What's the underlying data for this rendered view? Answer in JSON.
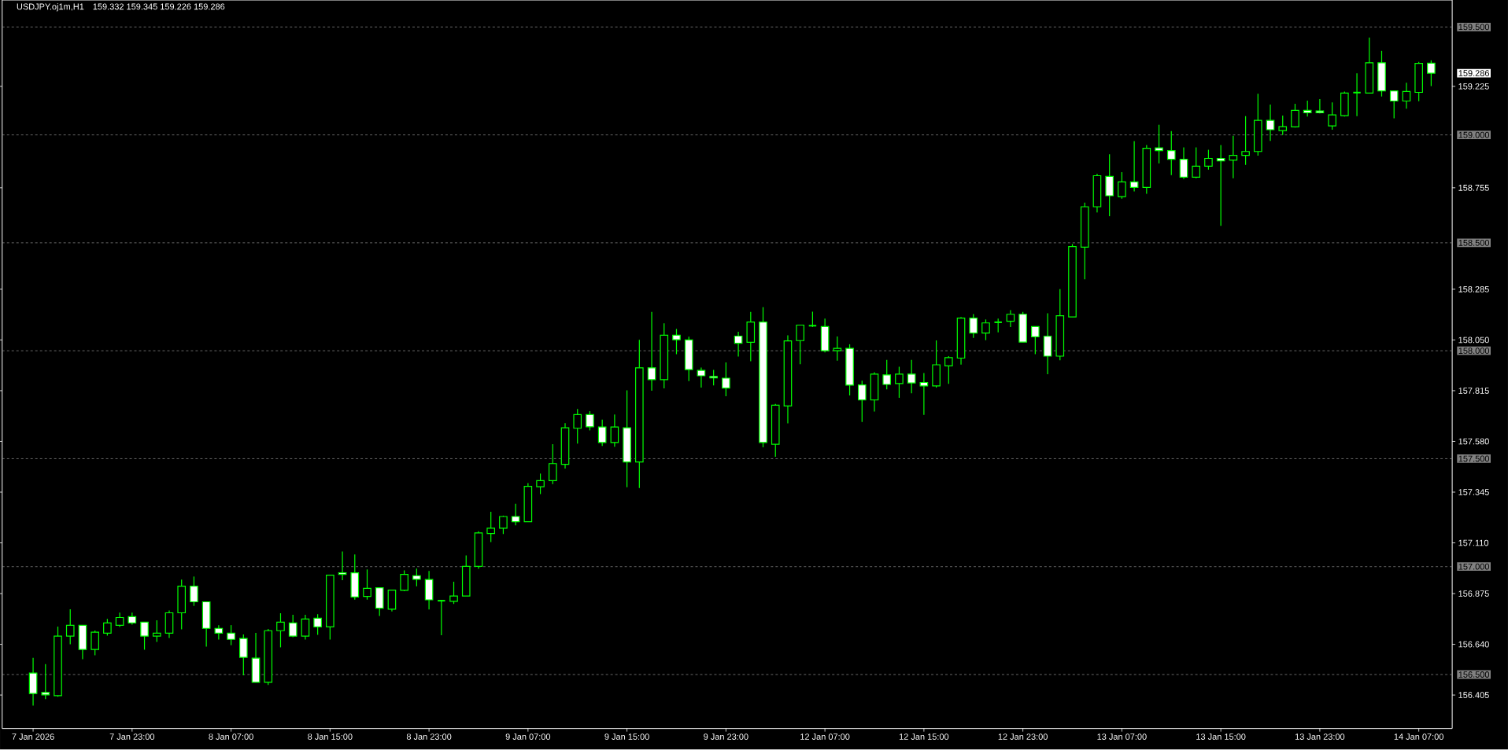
{
  "chart_data": {
    "type": "candlestick",
    "title": "USDJPY.oj1m,H1",
    "subtitle": "159.332 159.345 159.226 159.286",
    "categories": [
      "7 Jan 2026",
      null,
      null,
      null,
      null,
      null,
      null,
      null,
      "7 Jan 23:00",
      null,
      null,
      null,
      null,
      null,
      null,
      null,
      "8 Jan 07:00",
      null,
      null,
      null,
      null,
      null,
      null,
      null,
      "8 Jan 15:00",
      null,
      null,
      null,
      null,
      null,
      null,
      null,
      "8 Jan 23:00",
      null,
      null,
      null,
      null,
      null,
      null,
      null,
      "9 Jan 07:00",
      null,
      null,
      null,
      null,
      null,
      null,
      null,
      "9 Jan 15:00",
      null,
      null,
      null,
      null,
      null,
      null,
      null,
      "9 Jan 23:00",
      null,
      null,
      null,
      null,
      null,
      null,
      null,
      "12 Jan 07:00",
      null,
      null,
      null,
      null,
      null,
      null,
      null,
      "12 Jan 15:00",
      null,
      null,
      null,
      null,
      null,
      null,
      null,
      "12 Jan 23:00",
      null,
      null,
      null,
      null,
      null,
      null,
      null,
      "13 Jan 07:00",
      null,
      null,
      null,
      null,
      null,
      null,
      null,
      "13 Jan 15:00",
      null,
      null,
      null,
      null,
      null,
      null,
      null,
      "13 Jan 23:00",
      null,
      null,
      null,
      null,
      null,
      null,
      null,
      "14 Jan 07:00",
      null
    ],
    "color": "#00ff00",
    "ohlc": [
      [
        156.507,
        156.577,
        156.356,
        156.412
      ],
      [
        156.417,
        156.548,
        156.386,
        156.406
      ],
      [
        156.402,
        156.722,
        156.397,
        156.678
      ],
      [
        156.678,
        156.802,
        156.64,
        156.728
      ],
      [
        156.728,
        156.728,
        156.571,
        156.616
      ],
      [
        156.616,
        156.704,
        156.589,
        156.696
      ],
      [
        156.692,
        156.758,
        156.68,
        156.739
      ],
      [
        156.728,
        156.787,
        156.72,
        156.764
      ],
      [
        156.768,
        156.787,
        156.731,
        156.739
      ],
      [
        156.743,
        156.743,
        156.615,
        156.678
      ],
      [
        156.678,
        156.751,
        156.651,
        156.692
      ],
      [
        156.692,
        156.797,
        156.669,
        156.786
      ],
      [
        156.786,
        156.94,
        156.709,
        156.909
      ],
      [
        156.909,
        156.954,
        156.818,
        156.837
      ],
      [
        156.837,
        156.837,
        156.629,
        156.714
      ],
      [
        156.714,
        156.729,
        156.662,
        156.692
      ],
      [
        156.692,
        156.729,
        156.636,
        156.663
      ],
      [
        156.667,
        156.686,
        156.496,
        156.58
      ],
      [
        156.576,
        156.693,
        156.464,
        156.464
      ],
      [
        156.464,
        156.711,
        156.452,
        156.703
      ],
      [
        156.703,
        156.784,
        156.626,
        156.743
      ],
      [
        156.739,
        156.777,
        156.673,
        156.678
      ],
      [
        156.678,
        156.777,
        156.662,
        156.757
      ],
      [
        156.761,
        156.78,
        156.684,
        156.721
      ],
      [
        156.721,
        156.96,
        156.662,
        156.96
      ],
      [
        156.971,
        157.07,
        156.937,
        156.964
      ],
      [
        156.971,
        157.056,
        156.847,
        156.859
      ],
      [
        156.862,
        156.987,
        156.847,
        156.899
      ],
      [
        156.902,
        156.902,
        156.771,
        156.807
      ],
      [
        156.803,
        156.891,
        156.792,
        156.891
      ],
      [
        156.89,
        156.983,
        156.886,
        156.964
      ],
      [
        156.958,
        156.991,
        156.909,
        156.941
      ],
      [
        156.94,
        156.98,
        156.801,
        156.846
      ],
      [
        156.842,
        156.846,
        156.682,
        156.842
      ],
      [
        156.839,
        156.93,
        156.827,
        156.864
      ],
      [
        156.864,
        157.052,
        156.864,
        157.001
      ],
      [
        157.001,
        157.164,
        156.99,
        157.156
      ],
      [
        157.153,
        157.254,
        157.114,
        157.178
      ],
      [
        157.178,
        157.236,
        157.151,
        157.232
      ],
      [
        157.232,
        157.291,
        157.191,
        157.208
      ],
      [
        157.208,
        157.387,
        157.208,
        157.372
      ],
      [
        157.37,
        157.431,
        157.336,
        157.398
      ],
      [
        157.398,
        157.567,
        157.382,
        157.477
      ],
      [
        157.474,
        157.665,
        157.454,
        157.643
      ],
      [
        157.641,
        157.73,
        157.57,
        157.704
      ],
      [
        157.704,
        157.72,
        157.631,
        157.648
      ],
      [
        157.647,
        157.681,
        157.559,
        157.575
      ],
      [
        157.575,
        157.705,
        157.555,
        157.647
      ],
      [
        157.643,
        157.817,
        157.368,
        157.485
      ],
      [
        157.485,
        158.051,
        157.364,
        157.921
      ],
      [
        157.921,
        158.18,
        157.815,
        157.866
      ],
      [
        157.866,
        158.127,
        157.826,
        158.072
      ],
      [
        158.072,
        158.101,
        157.984,
        158.051
      ],
      [
        158.05,
        158.065,
        157.859,
        157.913
      ],
      [
        157.909,
        157.922,
        157.829,
        157.884
      ],
      [
        157.881,
        157.911,
        157.839,
        157.874
      ],
      [
        157.873,
        157.946,
        157.789,
        157.827
      ],
      [
        158.068,
        158.088,
        157.973,
        158.035
      ],
      [
        158.039,
        158.18,
        157.951,
        158.133
      ],
      [
        158.133,
        158.202,
        157.553,
        157.575
      ],
      [
        157.567,
        157.754,
        157.509,
        157.748
      ],
      [
        157.744,
        158.072,
        157.664,
        158.046
      ],
      [
        158.047,
        158.119,
        157.938,
        158.119
      ],
      [
        158.116,
        158.181,
        158.11,
        158.116
      ],
      [
        158.112,
        158.149,
        157.992,
        158.0
      ],
      [
        158.0,
        158.066,
        157.954,
        158.011
      ],
      [
        158.011,
        158.03,
        157.793,
        157.841
      ],
      [
        157.842,
        157.861,
        157.67,
        157.772
      ],
      [
        157.772,
        157.9,
        157.718,
        157.892
      ],
      [
        157.888,
        157.958,
        157.821,
        157.844
      ],
      [
        157.848,
        157.926,
        157.782,
        157.892
      ],
      [
        157.892,
        157.958,
        157.803,
        157.851
      ],
      [
        157.853,
        157.897,
        157.703,
        157.837
      ],
      [
        157.837,
        158.048,
        157.829,
        157.935
      ],
      [
        157.93,
        157.975,
        157.847,
        157.968
      ],
      [
        157.966,
        158.156,
        157.936,
        158.151
      ],
      [
        158.151,
        158.17,
        158.06,
        158.082
      ],
      [
        158.082,
        158.145,
        158.049,
        158.129
      ],
      [
        158.132,
        158.149,
        158.085,
        158.132
      ],
      [
        158.137,
        158.188,
        158.11,
        158.169
      ],
      [
        158.169,
        158.18,
        158.04,
        158.04
      ],
      [
        158.112,
        158.112,
        157.984,
        158.065
      ],
      [
        158.067,
        158.174,
        157.891,
        157.975
      ],
      [
        157.975,
        158.286,
        157.956,
        158.162
      ],
      [
        158.157,
        158.494,
        158.157,
        158.483
      ],
      [
        158.48,
        158.686,
        158.331,
        158.667
      ],
      [
        158.667,
        158.82,
        158.641,
        158.811
      ],
      [
        158.808,
        158.91,
        158.623,
        158.718
      ],
      [
        158.714,
        158.827,
        158.704,
        158.782
      ],
      [
        158.782,
        158.971,
        158.738,
        158.757
      ],
      [
        158.757,
        158.953,
        158.727,
        158.938
      ],
      [
        158.94,
        159.047,
        158.868,
        158.927
      ],
      [
        158.927,
        159.018,
        158.814,
        158.887
      ],
      [
        158.887,
        158.942,
        158.796,
        158.804
      ],
      [
        158.804,
        158.942,
        158.799,
        158.855
      ],
      [
        158.855,
        158.931,
        158.839,
        158.891
      ],
      [
        158.891,
        158.953,
        158.579,
        158.88
      ],
      [
        158.883,
        158.996,
        158.799,
        158.905
      ],
      [
        158.905,
        159.087,
        158.861,
        158.923
      ],
      [
        158.923,
        159.191,
        158.904,
        159.067
      ],
      [
        159.067,
        159.141,
        158.972,
        159.024
      ],
      [
        159.02,
        159.09,
        158.999,
        159.038
      ],
      [
        159.037,
        159.144,
        159.034,
        159.114
      ],
      [
        159.114,
        159.159,
        159.085,
        159.103
      ],
      [
        159.111,
        159.166,
        159.1,
        159.103
      ],
      [
        159.042,
        159.151,
        159.024,
        159.093
      ],
      [
        159.089,
        159.201,
        159.085,
        159.194
      ],
      [
        159.196,
        159.285,
        159.087,
        159.196
      ],
      [
        159.194,
        159.451,
        159.194,
        159.334
      ],
      [
        159.334,
        159.389,
        159.178,
        159.204
      ],
      [
        159.204,
        159.204,
        159.077,
        159.157
      ],
      [
        159.157,
        159.242,
        159.121,
        159.201
      ],
      [
        159.197,
        159.338,
        159.156,
        159.331
      ],
      [
        159.332,
        159.345,
        159.226,
        159.286
      ]
    ],
    "ylim": [
      156.25,
      159.625
    ],
    "yticks": [
      {
        "value": 156.405,
        "label": "156.405"
      },
      {
        "value": 156.64,
        "label": "156.640"
      },
      {
        "value": 156.875,
        "label": "156.875"
      },
      {
        "value": 157.11,
        "label": "157.110"
      },
      {
        "value": 157.345,
        "label": "157.345"
      },
      {
        "value": 157.58,
        "label": "157.580"
      },
      {
        "value": 157.815,
        "label": "157.815"
      },
      {
        "value": 158.05,
        "label": "158.050"
      },
      {
        "value": 158.285,
        "label": "158.285"
      },
      {
        "value": 158.755,
        "label": "158.755"
      },
      {
        "value": 159.225,
        "label": "159.225"
      }
    ],
    "ref_lines": [
      {
        "axis": "y",
        "value": 156.5,
        "label": "156.500",
        "color": "#808080",
        "line_style": "dashed"
      },
      {
        "axis": "y",
        "value": 157.0,
        "label": "157.000",
        "color": "#808080",
        "line_style": "dashed"
      },
      {
        "axis": "y",
        "value": 157.5,
        "label": "157.500",
        "color": "#808080",
        "line_style": "dashed"
      },
      {
        "axis": "y",
        "value": 158.0,
        "label": "158.000",
        "color": "#808080",
        "line_style": "dashed"
      },
      {
        "axis": "y",
        "value": 158.5,
        "label": "158.500",
        "color": "#808080",
        "line_style": "dashed"
      },
      {
        "axis": "y",
        "value": 159.0,
        "label": "159.000",
        "color": "#808080",
        "line_style": "dashed"
      },
      {
        "axis": "y",
        "value": 159.5,
        "label": "159.500",
        "color": "#808080",
        "line_style": "dashed"
      }
    ],
    "annotations": [
      "159.286"
    ]
  }
}
